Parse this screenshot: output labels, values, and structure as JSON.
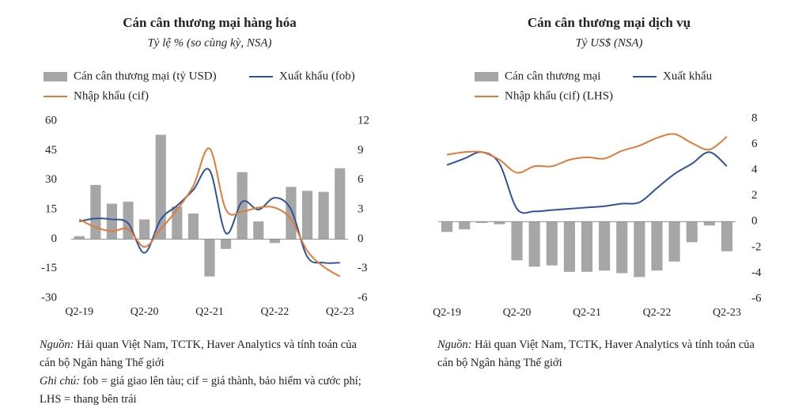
{
  "chart_data": [
    {
      "type": "combo",
      "title": "Cán cân thương mại hàng hóa",
      "subtitle": "Tỷ lệ % (so cùng kỳ, NSA)",
      "categories": [
        "Q2-19",
        null,
        null,
        null,
        "Q2-20",
        null,
        null,
        null,
        "Q2-21",
        null,
        null,
        null,
        "Q2-22",
        null,
        null,
        null,
        "Q2-23"
      ],
      "series": [
        {
          "name": "Cán cân thương mại (tỷ USD)",
          "type": "bar",
          "axis": "y2",
          "color": "#a6a6a6",
          "values": [
            0.3,
            5.5,
            3.6,
            3.8,
            2.0,
            10.6,
            3.3,
            2.6,
            -3.8,
            -1.0,
            6.8,
            1.8,
            -0.4,
            5.3,
            4.9,
            4.8,
            7.2
          ]
        },
        {
          "name": "Xuất khẩu (fob)",
          "type": "line",
          "color": "#2f5597",
          "values": [
            9,
            10.5,
            10,
            8,
            -7,
            10,
            17,
            25,
            35,
            3,
            19,
            15,
            21,
            15,
            -9,
            -12,
            -12
          ]
        },
        {
          "name": "Nhập khẩu (cif)",
          "type": "line",
          "color": "#e07b39",
          "values": [
            10,
            6,
            4,
            5,
            -4,
            5,
            15,
            27,
            46,
            15,
            14,
            16,
            16,
            10,
            -6,
            -14,
            -19
          ]
        }
      ],
      "ylim": [
        -30,
        60
      ],
      "yticks": [
        -30,
        -15,
        0,
        15,
        30,
        45,
        60
      ],
      "y2lim": [
        -6,
        12
      ],
      "y2ticks": [
        -6,
        -3,
        0,
        3,
        6,
        9,
        12
      ],
      "grid": false,
      "source_label": "Nguồn:",
      "source": "Hải quan Việt Nam, TCTK, Haver Analytics và tính toán của cán bộ Ngân hàng Thế giới",
      "note_label": "Ghi chú:",
      "note": "fob = giá giao lên tàu; cif = giá thành, bảo hiểm và cước phí; LHS = thang bên trái"
    },
    {
      "type": "combo",
      "title": "Cán cân thương mại dịch vụ",
      "subtitle": "Tỷ US$ (NSA)",
      "categories": [
        "Q2-19",
        null,
        null,
        null,
        "Q2-20",
        null,
        null,
        null,
        "Q2-21",
        null,
        null,
        null,
        "Q2-22",
        null,
        null,
        null,
        "Q2-23"
      ],
      "series": [
        {
          "name": "Cán cân thương mại",
          "type": "bar",
          "color": "#a6a6a6",
          "values": [
            -0.8,
            -0.6,
            -0.1,
            -0.2,
            -3.0,
            -3.5,
            -3.4,
            -3.9,
            -3.9,
            -3.8,
            -4.0,
            -4.3,
            -3.8,
            -3.1,
            -1.6,
            -0.3,
            -2.3
          ]
        },
        {
          "name": "Xuất khẩu",
          "type": "line",
          "color": "#2f5597",
          "values": [
            4.4,
            4.9,
            5.4,
            4.5,
            1.0,
            0.8,
            0.9,
            1.0,
            1.1,
            1.2,
            1.4,
            1.5,
            2.6,
            3.7,
            4.5,
            5.4,
            4.3
          ]
        },
        {
          "name": "Nhập khẩu (cif) (LHS)",
          "type": "line",
          "color": "#e07b39",
          "values": [
            5.2,
            5.4,
            5.4,
            4.8,
            3.8,
            4.3,
            4.3,
            4.8,
            5.0,
            4.9,
            5.5,
            5.9,
            6.5,
            6.8,
            6.1,
            5.6,
            6.6
          ]
        }
      ],
      "ylim": [
        -6,
        8
      ],
      "yticks": [
        -6,
        -4,
        -2,
        0,
        2,
        4,
        6,
        8
      ],
      "y_axis_side": "right",
      "grid": false,
      "source_label": "Nguồn:",
      "source": "Hải quan Việt Nam, TCTK, Haver Analytics và tính toán của cán bộ Ngân hàng Thế giới"
    }
  ]
}
